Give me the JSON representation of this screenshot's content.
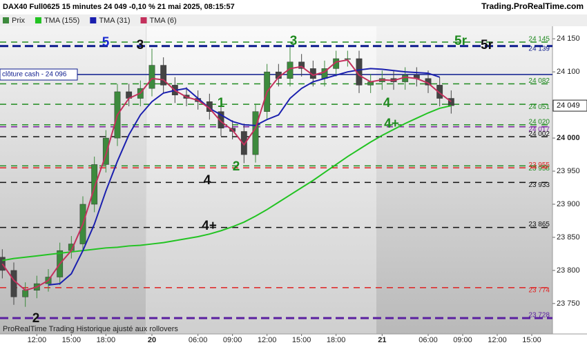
{
  "chart_data": {
    "type": "candlestick",
    "title": "DAX40 Full0625 15 minutes 24 049 -0,10 % 21 mai 2025, 08:15:57",
    "source": "Trading.ProRealTime.com",
    "footer": "ProRealTime Trading Historique ajusté aux rollovers",
    "price_name": "Prix",
    "up_color": "#3d8a3d",
    "down_color": "#444444",
    "open": [
      23820,
      23800,
      23760,
      23770,
      23780,
      23790,
      23830,
      23840,
      23900,
      23960,
      24000,
      24070,
      24060,
      24075,
      24110,
      24080,
      24065,
      24060,
      24055,
      24040,
      24015,
      24010,
      23975,
      24040,
      24100,
      24090,
      24115,
      24105,
      24090,
      24105,
      24120,
      24120,
      24080,
      24085,
      24090,
      24085,
      24095,
      24090,
      24080,
      24060
    ],
    "high": [
      23832,
      23812,
      23782,
      23792,
      23802,
      23842,
      23852,
      23912,
      23972,
      24012,
      24082,
      24082,
      24087,
      24135,
      24122,
      24092,
      24077,
      24072,
      24067,
      24052,
      24027,
      24022,
      24052,
      24112,
      24112,
      24138,
      24127,
      24117,
      24117,
      24132,
      24132,
      24132,
      24097,
      24102,
      24102,
      24107,
      24107,
      24102,
      24092,
      24072
    ],
    "low": [
      23788,
      23748,
      23745,
      23758,
      23768,
      23778,
      23818,
      23828,
      23888,
      23948,
      23988,
      24048,
      24048,
      24063,
      24068,
      24053,
      24048,
      24043,
      24028,
      24003,
      23998,
      23962,
      23963,
      24028,
      24078,
      24078,
      24093,
      24078,
      24078,
      24093,
      24108,
      24068,
      24068,
      24073,
      24073,
      24073,
      24078,
      24068,
      24048,
      24037
    ],
    "close": [
      23800,
      23760,
      23770,
      23780,
      23790,
      23830,
      23840,
      23900,
      23960,
      24000,
      24070,
      24060,
      24075,
      24110,
      24080,
      24065,
      24060,
      24055,
      24040,
      24015,
      24010,
      23975,
      24040,
      24100,
      24090,
      24115,
      24105,
      24090,
      24105,
      24120,
      24120,
      24080,
      24085,
      24090,
      24085,
      24095,
      24090,
      24080,
      24060,
      24049
    ],
    "series": [
      {
        "name": "TMA (155)",
        "color": "#22c322",
        "values": [
          23815,
          23818,
          23820,
          23822,
          23824,
          23826,
          23828,
          23830,
          23832,
          23834,
          23835,
          23837,
          23838,
          23840,
          23842,
          23845,
          23848,
          23851,
          23855,
          23860,
          23866,
          23873,
          23882,
          23892,
          23903,
          23914,
          23925,
          23936,
          23948,
          23960,
          23972,
          23983,
          23994,
          24004,
          24013,
          24022,
          24030,
          24038,
          24045,
          24049
        ]
      },
      {
        "name": "TMA (31)",
        "color": "#1a1fae",
        "values": [
          null,
          null,
          null,
          null,
          23778,
          23780,
          23795,
          23830,
          23870,
          23920,
          23965,
          24005,
          24035,
          24055,
          24068,
          24072,
          24075,
          24060,
          24045,
          24035,
          24025,
          24020,
          24019,
          24028,
          24035,
          24060,
          24075,
          24085,
          24090,
          24095,
          24100,
          24103,
          24105,
          24104,
          24102,
          24100,
          24099,
          24098,
          24092,
          null
        ]
      },
      {
        "name": "TMA (6)",
        "color": "#c3305c",
        "values": [
          23810,
          23785,
          23770,
          23775,
          23785,
          23810,
          23830,
          23870,
          23925,
          23975,
          24035,
          24060,
          24068,
          24090,
          24088,
          24072,
          24062,
          24057,
          24045,
          24025,
          24012,
          23990,
          24015,
          24070,
          24092,
          24105,
          24108,
          24095,
          24100,
          24115,
          24118,
          24095,
          24085,
          24088,
          24087,
          24092,
          24090,
          24083,
          24068,
          24055
        ]
      }
    ],
    "xlim": [
      -0.2,
      47.8
    ],
    "xticks": [
      {
        "value": 3,
        "label": "12:00"
      },
      {
        "value": 6,
        "label": "15:00"
      },
      {
        "value": 9,
        "label": "18:00"
      },
      {
        "value": 13,
        "label": "20"
      },
      {
        "value": 17,
        "label": "06:00"
      },
      {
        "value": 20,
        "label": "09:00"
      },
      {
        "value": 23,
        "label": "12:00"
      },
      {
        "value": 26,
        "label": "15:00"
      },
      {
        "value": 29,
        "label": "18:00"
      },
      {
        "value": 33,
        "label": "21"
      },
      {
        "value": 37,
        "label": "06:00"
      },
      {
        "value": 40,
        "label": "09:00"
      },
      {
        "value": 43,
        "label": "12:00"
      },
      {
        "value": 46,
        "label": "15:00"
      }
    ],
    "ylim": [
      23704,
      24169
    ],
    "yticks": [
      {
        "value": 24150,
        "label": "24 150"
      },
      {
        "value": 24100,
        "label": "24 100"
      },
      {
        "value": 24050,
        "label": "24 050"
      },
      {
        "value": 24000,
        "label": "24 000"
      },
      {
        "value": 23950,
        "label": "23 950"
      },
      {
        "value": 23900,
        "label": "23 900"
      },
      {
        "value": 23850,
        "label": "23 850"
      },
      {
        "value": 23800,
        "label": "23 800"
      },
      {
        "value": 23750,
        "label": "23 750"
      }
    ],
    "levels": [
      {
        "value": 24145,
        "label": "24 145",
        "color": "#1f8a1f",
        "style": "dashed"
      },
      {
        "value": 24139,
        "label": "24 139",
        "color": "#0b1a8c",
        "style": "bold-dashed"
      },
      {
        "value": 24082,
        "label": "24 082",
        "color": "#1f8a1f",
        "style": "dashed"
      },
      {
        "value": 24051,
        "label": "24 051",
        "color": "#1f8a1f",
        "style": "dashed"
      },
      {
        "value": 24020,
        "label": "24 020",
        "color": "#1f8a1f",
        "style": "dashed"
      },
      {
        "value": 24017,
        "label": "24 017",
        "color": "#7a1fa2",
        "style": "dashed"
      },
      {
        "value": 24002,
        "label": "24 002",
        "color": "#111111",
        "style": "dashed"
      },
      {
        "value": 23958,
        "label": "23 958",
        "color": "#1f8a1f",
        "style": "dashed"
      },
      {
        "value": 23955,
        "label": "23 955",
        "color": "#e02020",
        "style": "dashed"
      },
      {
        "value": 23933,
        "label": "23 933",
        "color": "#111111",
        "style": "dashed"
      },
      {
        "value": 23865,
        "label": "23 865",
        "color": "#111111",
        "style": "dashed"
      },
      {
        "value": 23774,
        "label": "23 774",
        "color": "#e02020",
        "style": "dashed"
      },
      {
        "value": 23728,
        "label": "23 728",
        "color": "#5a1fa0",
        "style": "bold-dashed"
      }
    ],
    "cash_close": {
      "value": 24096,
      "label": "clôture cash - 24 096",
      "color": "#0b1a8c"
    },
    "last_price": {
      "value": 24049,
      "label": "24 049"
    },
    "annotations": [
      {
        "text": "5",
        "color": "#1a2ad0"
      },
      {
        "text": "3",
        "color": "#111111"
      },
      {
        "text": "3",
        "color": "#1f8a1f"
      },
      {
        "text": "5r",
        "color": "#1f8a1f"
      },
      {
        "text": "5r",
        "color": "#111111"
      },
      {
        "text": "1",
        "color": "#1f8a1f"
      },
      {
        "text": "4",
        "color": "#1f8a1f"
      },
      {
        "text": "4+",
        "color": "#1f8a1f"
      },
      {
        "text": "2",
        "color": "#1f8a1f"
      },
      {
        "text": "4",
        "color": "#111111"
      },
      {
        "text": "4+",
        "color": "#111111"
      },
      {
        "text": "2",
        "color": "#111111"
      }
    ]
  }
}
